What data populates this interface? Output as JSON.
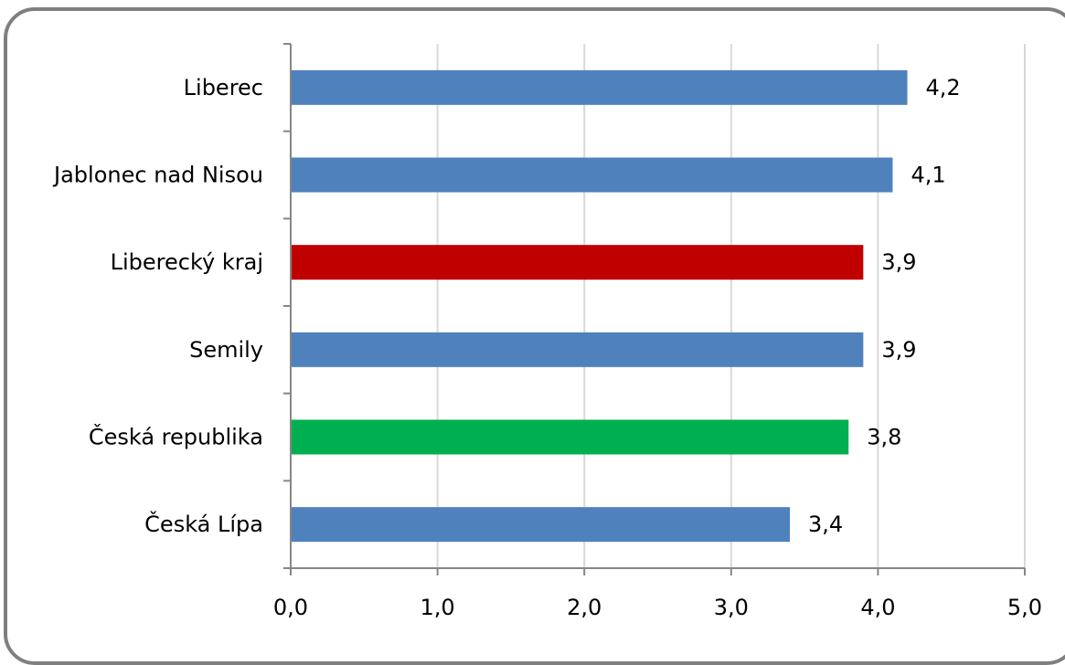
{
  "chart_data": {
    "type": "bar",
    "orientation": "horizontal",
    "title": "",
    "xlabel": "",
    "ylabel": "",
    "categories": [
      "Liberec",
      "Jablonec nad Nisou",
      "Liberecký kraj",
      "Semily",
      "Česká republika",
      "Česká Lípa"
    ],
    "values": [
      4.2,
      4.1,
      3.9,
      3.9,
      3.8,
      3.4
    ],
    "value_labels": [
      "4,2",
      "4,1",
      "3,9",
      "3,9",
      "3,8",
      "3,4"
    ],
    "bar_colors": [
      "#4f81bd",
      "#4f81bd",
      "#c00000",
      "#4f81bd",
      "#00b050",
      "#4f81bd"
    ],
    "xlim": [
      0,
      5
    ],
    "x_ticks": [
      0,
      1,
      2,
      3,
      4,
      5
    ],
    "x_tick_labels": [
      "0,0",
      "1,0",
      "2,0",
      "3,0",
      "4,0",
      "5,0"
    ],
    "grid": "vertical",
    "grid_color": "#d9d9d9",
    "legend": "none"
  }
}
